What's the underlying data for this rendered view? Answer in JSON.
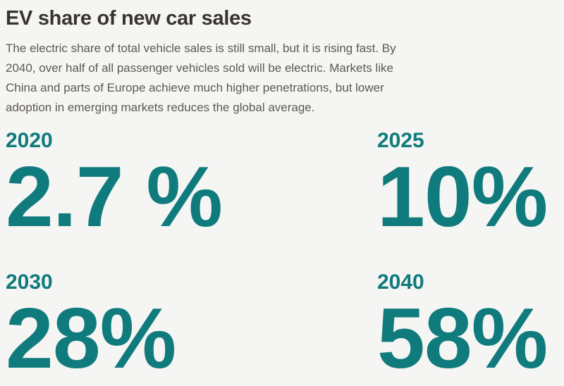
{
  "page": {
    "background_color": "#f5f5f3",
    "accent_color": "#107b7d",
    "title_color": "#38332f",
    "body_text_color": "#5d5953"
  },
  "header": {
    "title": "EV share of new car sales",
    "description": "The electric share of total vehicle sales is still small, but it is rising fast. By 2040, over half of all passenger vehicles sold will be electric. Markets like China and parts of Europe achieve much higher penetrations, but lower adoption in emerging markets reduces the global average."
  },
  "stats": [
    {
      "year": "2020",
      "value": "2.7 %"
    },
    {
      "year": "2025",
      "value": "10%"
    },
    {
      "year": "2030",
      "value": "28%"
    },
    {
      "year": "2040",
      "value": "58%"
    }
  ],
  "chart_data": {
    "type": "table",
    "title": "EV share of new car sales",
    "categories": [
      "2020",
      "2025",
      "2030",
      "2040"
    ],
    "values": [
      2.7,
      10,
      28,
      58
    ],
    "unit": "%",
    "layout": "2x2 grid of large stat figures, teal on light gray"
  }
}
